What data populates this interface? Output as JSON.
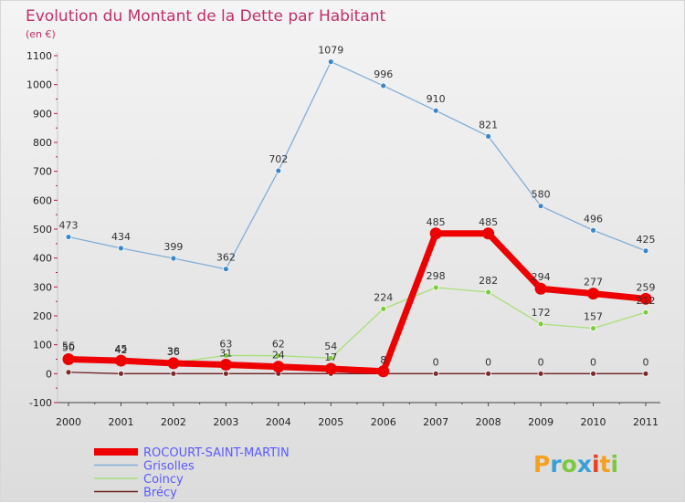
{
  "chart_data": {
    "type": "line",
    "title": "Evolution du Montant de la Dette par Habitant",
    "subtitle": "(en €)",
    "x": [
      "2000",
      "2001",
      "2002",
      "2003",
      "2004",
      "2005",
      "2006",
      "2007",
      "2008",
      "2009",
      "2010",
      "2011"
    ],
    "y_ticks": [
      -100,
      0,
      100,
      200,
      300,
      400,
      500,
      600,
      700,
      800,
      900,
      1000,
      1100
    ],
    "ylim": [
      -100,
      1100
    ],
    "grid": false,
    "legend_position": "bottom-left",
    "series": [
      {
        "name": "Brécy",
        "color": "#6b1f1f",
        "point_color": "#7a2a2a",
        "values": [
          5,
          0,
          0,
          0,
          0,
          0,
          0,
          0,
          0,
          0,
          0,
          0
        ],
        "label_values": [],
        "highlight": false
      },
      {
        "name": "Coincy",
        "color": "#a8e07a",
        "point_color": "#7ccc3c",
        "values": [
          56,
          42,
          38,
          63,
          62,
          54,
          224,
          298,
          282,
          172,
          157,
          212
        ],
        "label_values": [
          "56",
          "42",
          "38",
          "63",
          "62",
          "54",
          "224",
          "298",
          "282",
          "172",
          "157",
          "212"
        ],
        "highlight": false
      },
      {
        "name": "Grisolles",
        "color": "#82aed8",
        "point_color": "#3a86c8",
        "values": [
          473,
          434,
          399,
          362,
          702,
          1079,
          996,
          910,
          821,
          580,
          496,
          425
        ],
        "label_values": [
          "473",
          "434",
          "399",
          "362",
          "702",
          "1079",
          "996",
          "910",
          "821",
          "580",
          "496",
          "425"
        ],
        "highlight": false
      },
      {
        "name": "ROCOURT-SAINT-MARTIN",
        "color": "#ee0000",
        "point_color": "#ee0000",
        "values": [
          50,
          45,
          36,
          31,
          24,
          17,
          8,
          485,
          485,
          294,
          277,
          259
        ],
        "label_values": [
          "50",
          "45",
          "36",
          "31",
          "24",
          "17",
          "8",
          "485",
          "485",
          "294",
          "277",
          "259"
        ],
        "highlight": true
      }
    ],
    "zero_labels": {
      "values": [
        "0",
        "0",
        "0",
        "0",
        "0"
      ],
      "indices": [
        7,
        8,
        9,
        10,
        11
      ]
    }
  },
  "legend": [
    {
      "name": "ROCOURT-SAINT-MARTIN",
      "color": "#ee0000",
      "text_color": "#5a5aff"
    },
    {
      "name": "Grisolles",
      "color": "#82aed8",
      "text_color": "#5a5aff"
    },
    {
      "name": "Coincy",
      "color": "#a8e07a",
      "text_color": "#5a5aff"
    },
    {
      "name": "Brécy",
      "color": "#6b1f1f",
      "text_color": "#5a5aff"
    }
  ],
  "logo": {
    "text": "Proxiti"
  }
}
